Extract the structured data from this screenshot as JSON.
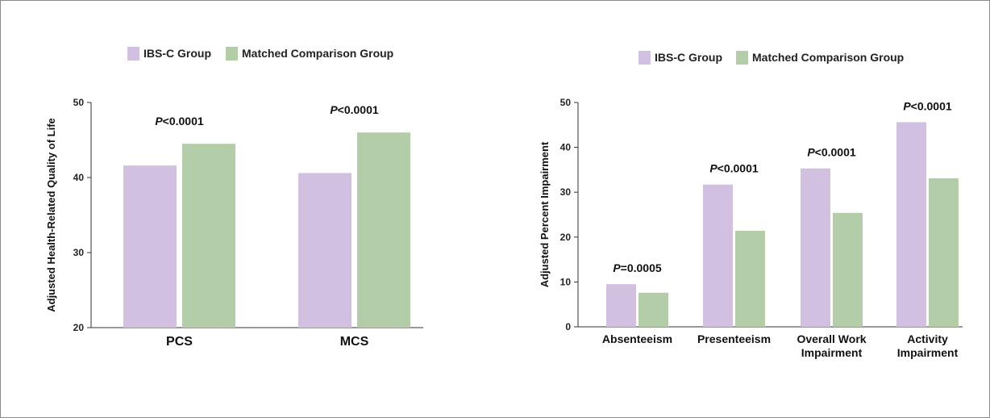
{
  "chart_data": [
    {
      "type": "bar",
      "legend": [
        "IBS-C Group",
        "Matched Comparison Group"
      ],
      "categories": [
        "PCS",
        "MCS"
      ],
      "series": [
        {
          "name": "IBS-C Group",
          "values": [
            41.6,
            40.6
          ],
          "color": "#d1c0e0"
        },
        {
          "name": "Matched Comparison Group",
          "values": [
            44.5,
            46.0
          ],
          "color": "#b4cda9"
        }
      ],
      "p_values": [
        "P<0.0001",
        "P<0.0001"
      ],
      "ylabel": "Adjusted Health-Related Quality of Life",
      "ylim": [
        20,
        50
      ],
      "yticks": [
        20,
        30,
        40,
        50
      ],
      "grid": false,
      "legend_position": "top"
    },
    {
      "type": "bar",
      "legend": [
        "IBS-C Group",
        "Matched Comparison Group"
      ],
      "categories": [
        [
          "Absenteeism"
        ],
        [
          "Presenteeism"
        ],
        [
          "Overall Work",
          "Impairment"
        ],
        [
          "Activity",
          "Impairment"
        ]
      ],
      "series": [
        {
          "name": "IBS-C Group",
          "values": [
            9.5,
            31.7,
            35.3,
            45.6
          ],
          "color": "#d1c0e0"
        },
        {
          "name": "Matched Comparison Group",
          "values": [
            7.6,
            21.4,
            25.4,
            33.1
          ],
          "color": "#b4cda9"
        }
      ],
      "p_values": [
        "P=0.0005",
        "P<0.0001",
        "P<0.0001",
        "P<0.0001"
      ],
      "ylabel": "Adjusted Percent Impairment",
      "ylim": [
        0,
        50
      ],
      "yticks": [
        0,
        10,
        20,
        30,
        40,
        50
      ],
      "grid": false,
      "legend_position": "top"
    }
  ]
}
